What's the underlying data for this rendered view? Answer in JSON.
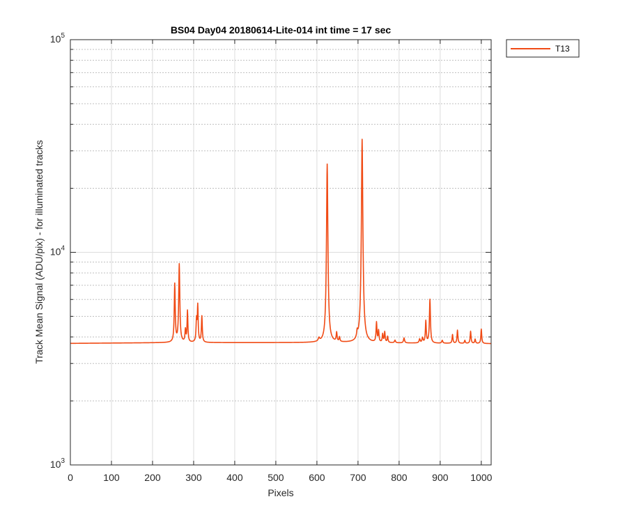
{
  "chart_data": {
    "type": "line",
    "title": "BS04 Day04 20180614-Lite-014 int time = 17 sec",
    "xlabel": "Pixels",
    "ylabel": "Track Mean Signal (ADU/pix) - for illuminated tracks",
    "xlim": [
      0,
      1024
    ],
    "ylim": [
      1000,
      100000
    ],
    "yscale": "log",
    "grid": true,
    "legend_position": "outside top-right",
    "x_ticks": [
      "0",
      "100",
      "200",
      "300",
      "400",
      "500",
      "600",
      "700",
      "800",
      "900",
      "1000"
    ],
    "y_ticks": [
      {
        "base": "10",
        "exp": "3",
        "value": 1000
      },
      {
        "base": "10",
        "exp": "4",
        "value": 10000
      },
      {
        "base": "10",
        "exp": "5",
        "value": 100000
      }
    ],
    "series": [
      {
        "name": "T13",
        "color": "#f04a14",
        "baseline": {
          "x": [
            0,
            250,
            600,
            1024
          ],
          "y": [
            3730,
            3760,
            3760,
            3720
          ]
        },
        "peaks": [
          {
            "x": 254,
            "y": 7100,
            "w": 1.2
          },
          {
            "x": 265,
            "y": 8800,
            "w": 1.3
          },
          {
            "x": 280,
            "y": 4300,
            "w": 1.2
          },
          {
            "x": 285,
            "y": 5300,
            "w": 1.1
          },
          {
            "x": 307,
            "y": 4800,
            "w": 1.2
          },
          {
            "x": 310,
            "y": 5600,
            "w": 1.1
          },
          {
            "x": 320,
            "y": 5000,
            "w": 1.2
          },
          {
            "x": 605,
            "y": 3900,
            "w": 2.0
          },
          {
            "x": 625,
            "y": 26000,
            "w": 1.3
          },
          {
            "x": 648,
            "y": 4150,
            "w": 1.2
          },
          {
            "x": 655,
            "y": 3950,
            "w": 1.2
          },
          {
            "x": 698,
            "y": 4050,
            "w": 1.5
          },
          {
            "x": 710,
            "y": 34000,
            "w": 1.3
          },
          {
            "x": 745,
            "y": 4650,
            "w": 1.2
          },
          {
            "x": 750,
            "y": 4250,
            "w": 1.2
          },
          {
            "x": 760,
            "y": 4100,
            "w": 1.2
          },
          {
            "x": 765,
            "y": 4200,
            "w": 1.2
          },
          {
            "x": 772,
            "y": 4000,
            "w": 1.2
          },
          {
            "x": 790,
            "y": 3850,
            "w": 1.5
          },
          {
            "x": 812,
            "y": 3950,
            "w": 1.5
          },
          {
            "x": 850,
            "y": 3900,
            "w": 1.5
          },
          {
            "x": 857,
            "y": 3950,
            "w": 1.5
          },
          {
            "x": 865,
            "y": 4750,
            "w": 1.2
          },
          {
            "x": 875,
            "y": 6000,
            "w": 1.3
          },
          {
            "x": 905,
            "y": 3850,
            "w": 1.5
          },
          {
            "x": 930,
            "y": 4100,
            "w": 1.2
          },
          {
            "x": 942,
            "y": 4300,
            "w": 1.2
          },
          {
            "x": 960,
            "y": 3850,
            "w": 1.2
          },
          {
            "x": 974,
            "y": 4250,
            "w": 1.2
          },
          {
            "x": 985,
            "y": 3900,
            "w": 1.2
          },
          {
            "x": 1000,
            "y": 4350,
            "w": 1.2
          }
        ]
      }
    ]
  }
}
